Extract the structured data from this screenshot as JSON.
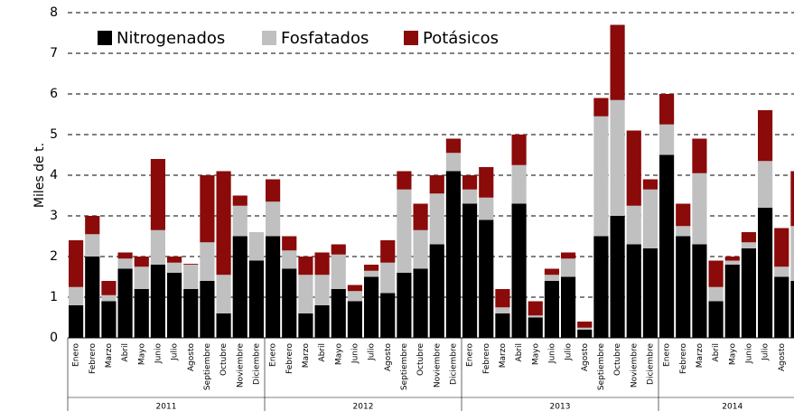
{
  "chart_data": {
    "type": "stacked-bar",
    "y_label": "Miles de t.",
    "categories": [
      "Enero",
      "Febrero",
      "Marzo",
      "Abril",
      "Mayo",
      "Junio",
      "Julio",
      "Agosto",
      "Septiembre",
      "Octubre",
      "Noviembre",
      "Diciembre",
      "Enero",
      "Febrero",
      "Marzo",
      "Abril",
      "Mayo",
      "Junio",
      "Julio",
      "Agosto",
      "Septiembre",
      "Octubre",
      "Noviembre",
      "Diciembre",
      "Enero",
      "Febrero",
      "Marzo",
      "Abril",
      "Mayo",
      "Junio",
      "Julio",
      "Agosto",
      "Septiembre",
      "Octubre",
      "Noviembre",
      "Diciembre",
      "Enero",
      "Febrero",
      "Marzo",
      "Abril",
      "Mayo",
      "Junio",
      "Julio",
      "Agosto",
      "Septiembre"
    ],
    "years": [
      "2011",
      "2012",
      "2013",
      "2014"
    ],
    "series": [
      {
        "name": "Nitrogenados",
        "color": "#000000",
        "values": [
          0.8,
          2.0,
          0.9,
          1.7,
          1.2,
          1.8,
          1.6,
          1.2,
          1.4,
          0.6,
          2.5,
          1.9,
          2.5,
          1.7,
          0.6,
          0.8,
          1.2,
          0.9,
          1.5,
          1.1,
          1.6,
          1.7,
          2.3,
          4.1,
          3.3,
          2.9,
          0.6,
          3.3,
          0.5,
          1.4,
          1.5,
          0.2,
          2.5,
          3.0,
          2.3,
          2.2,
          4.5,
          2.5,
          2.3,
          0.9,
          1.8,
          2.2,
          3.2,
          1.5,
          1.4
        ]
      },
      {
        "name": "Fosfatados",
        "color": "#c0c0c0",
        "values": [
          0.45,
          0.55,
          0.15,
          0.25,
          0.55,
          0.85,
          0.25,
          0.6,
          0.95,
          0.95,
          0.75,
          0.7,
          0.85,
          0.45,
          0.95,
          0.75,
          0.85,
          0.25,
          0.15,
          0.75,
          2.05,
          0.95,
          1.25,
          0.45,
          0.35,
          0.55,
          0.15,
          0.95,
          0.05,
          0.15,
          0.45,
          0.05,
          2.95,
          2.85,
          0.95,
          1.45,
          0.75,
          0.25,
          1.75,
          0.35,
          0.1,
          0.15,
          1.15,
          0.25,
          1.35
        ]
      },
      {
        "name": "Potásicos",
        "color": "#8b0a0a",
        "values": [
          1.15,
          0.45,
          0.35,
          0.15,
          0.25,
          1.75,
          0.15,
          0.02,
          1.65,
          2.55,
          0.25,
          0,
          0.55,
          0.35,
          0.45,
          0.55,
          0.25,
          0.15,
          0.15,
          0.55,
          0.45,
          0.65,
          0.45,
          0.35,
          0.35,
          0.75,
          0.45,
          0.75,
          0.35,
          0.15,
          0.15,
          0.15,
          0.45,
          1.85,
          1.85,
          0.25,
          0.75,
          0.55,
          0.85,
          0.65,
          0.1,
          0.25,
          1.25,
          0.95,
          1.35
        ]
      }
    ],
    "ylim": [
      0,
      8
    ],
    "yticks": [
      0,
      1,
      2,
      3,
      4,
      5,
      6,
      7,
      8
    ],
    "grid": true,
    "legend": "top"
  }
}
